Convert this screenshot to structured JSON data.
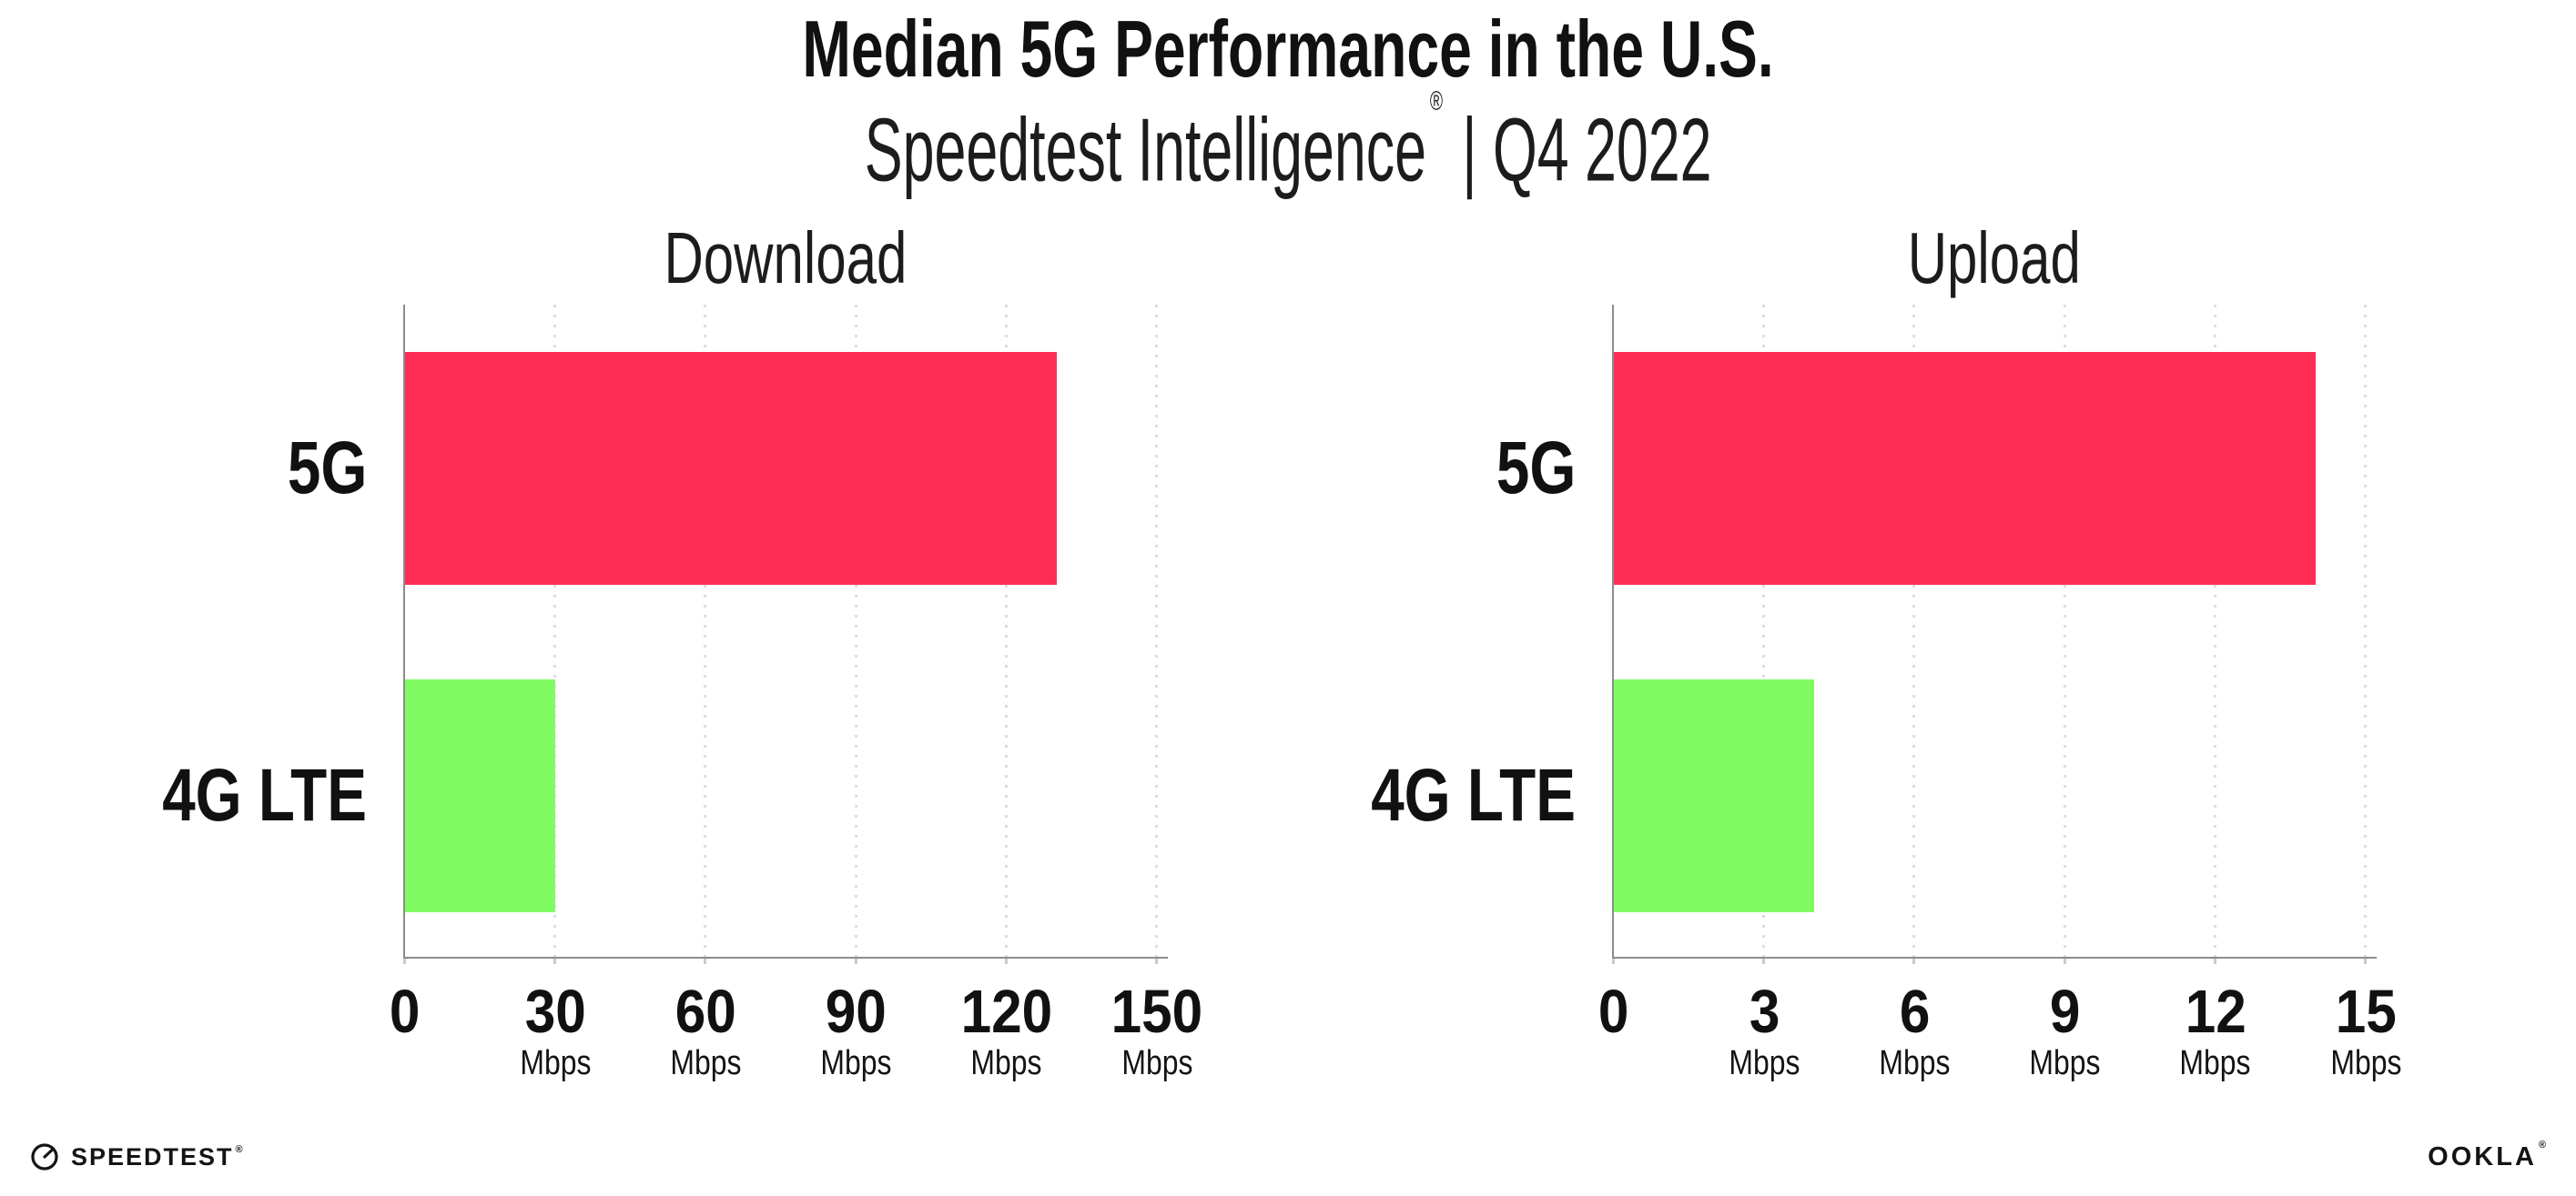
{
  "header": {
    "title": "Median 5G Performance in the U.S.",
    "subtitle_brand": "Speedtest Intelligence",
    "subtitle_reg": "®",
    "subtitle_rest": " | Q4 2022"
  },
  "chart_data": [
    {
      "type": "bar",
      "orientation": "horizontal",
      "title": "Download",
      "categories": [
        "5G",
        "4G LTE"
      ],
      "values": [
        130,
        30
      ],
      "unit": "Mbps",
      "xlabel": "",
      "ylabel": "",
      "xlim": [
        0,
        150
      ],
      "xticks": [
        0,
        30,
        60,
        90,
        120,
        150
      ],
      "grid": "vertical-dotted",
      "legend": "none",
      "bar_colors": [
        "#fd2d55",
        "#80fb62"
      ]
    },
    {
      "type": "bar",
      "orientation": "horizontal",
      "title": "Upload",
      "categories": [
        "5G",
        "4G LTE"
      ],
      "values": [
        14,
        4
      ],
      "unit": "Mbps",
      "xlabel": "",
      "ylabel": "",
      "xlim": [
        0,
        15
      ],
      "xticks": [
        0,
        3,
        6,
        9,
        12,
        15
      ],
      "grid": "vertical-dotted",
      "legend": "none",
      "bar_colors": [
        "#fd2d55",
        "#80fb62"
      ]
    }
  ],
  "colors": {
    "bar_5g": "#fd2d55",
    "bar_4g_lte": "#80fb62",
    "axis_spine": "#8c8c8c",
    "grid_dots": "#dcdce8",
    "text": "#111111",
    "background": "#ffffff"
  },
  "footer": {
    "speedtest_label": "SPEEDTEST",
    "ookla_label": "OOKLA",
    "reg_mark": "®"
  }
}
